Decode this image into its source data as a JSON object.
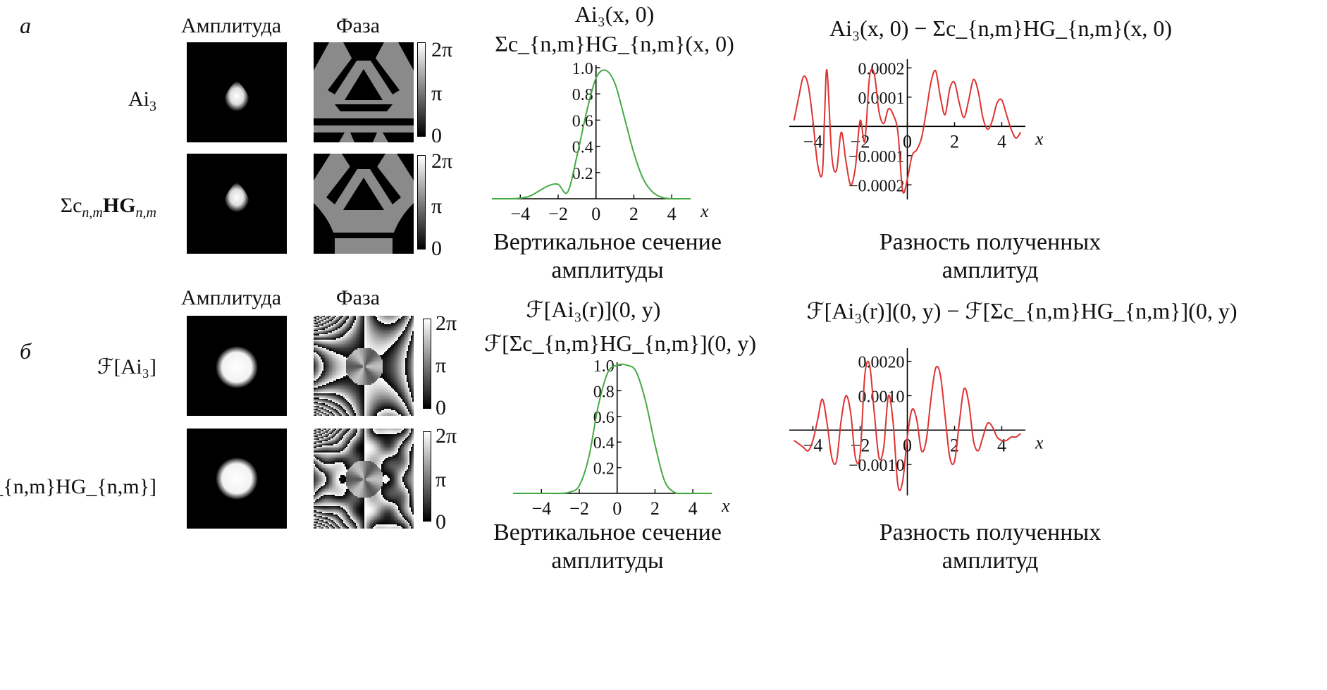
{
  "panels": {
    "a": {
      "letter": "а",
      "col_amplitude": "Амплитуда",
      "col_phase": "Фаза",
      "rows": [
        {
          "label_main": "Ai",
          "label_sub": "3"
        },
        {
          "label_main": "Σc",
          "label_sub": "n,m",
          "label_bold": "HG",
          "label_sub2": "n,m"
        }
      ],
      "colorbar": {
        "top": "2π",
        "mid": "π",
        "bottom": "0"
      },
      "section_title_1": "Ai₃(x, 0)",
      "section_title_2": "Σc_{n,m}HG_{n,m}(x, 0)",
      "section_caption_1": "Вертикальное сечение",
      "section_caption_2": "амплитуды",
      "diff_title": "Ai₃(x, 0) − Σc_{n,m}HG_{n,m}(x, 0)",
      "diff_caption_1": "Разность полученных",
      "diff_caption_2": "амплитуд"
    },
    "b": {
      "letter": "б",
      "col_amplitude": "Амплитуда",
      "col_phase": "Фаза",
      "rows": [
        {
          "label": "ℱ[Ai₃]"
        },
        {
          "label": "ℱ[Σc_{n,m}HG_{n,m}]"
        }
      ],
      "colorbar": {
        "top": "2π",
        "mid": "π",
        "bottom": "0"
      },
      "section_title_1": "ℱ[Ai₃(r)](0, y)",
      "section_title_2": "ℱ[Σc_{n,m}HG_{n,m}](0, y)",
      "section_caption_1": "Вертикальное сечение",
      "section_caption_2": "амплитуды",
      "diff_title": "ℱ[Ai₃(r)](0, y) − ℱ[Σc_{n,m}HG_{n,m}](0, y)",
      "diff_caption_1": "Разность полученных",
      "diff_caption_2": "амплитуд"
    }
  },
  "chart_data": [
    {
      "type": "line",
      "name_ref": "a-section",
      "xlabel": "x",
      "xlim": [
        -5.5,
        5
      ],
      "ylim": [
        0,
        1.0
      ],
      "x_ticks": [
        -4,
        -2,
        0,
        2,
        4
      ],
      "y_ticks": [
        0.2,
        0.4,
        0.6,
        0.8,
        1.0
      ],
      "x": [
        -5.5,
        -5,
        -4.5,
        -4,
        -3.5,
        -3,
        -2.5,
        -2,
        -1.5,
        -1,
        -0.5,
        0,
        0.5,
        1,
        1.5,
        2,
        2.5,
        3,
        3.5,
        4,
        4.5,
        5
      ],
      "series": [
        {
          "values": [
            0,
            0,
            0,
            0.005,
            0.02,
            0.06,
            0.1,
            0.11,
            0.05,
            0.33,
            0.66,
            0.92,
            0.98,
            0.88,
            0.62,
            0.35,
            0.15,
            0.05,
            0.01,
            0,
            0,
            0
          ]
        }
      ],
      "color": "#44aa44"
    },
    {
      "type": "line",
      "name_ref": "a-diff",
      "xlabel": "x",
      "xlim": [
        -5,
        5
      ],
      "ylim": [
        -0.00025,
        0.00022
      ],
      "x_ticks": [
        -4,
        -2,
        0,
        2,
        4
      ],
      "y_ticks": [
        -0.0002,
        -0.0001,
        0.0001,
        0.0002
      ],
      "y_tick_labels": [
        "−0.0002",
        "−0.0001",
        "0.0001",
        "0.0002"
      ],
      "x": [
        -4.8,
        -4.6,
        -4.4,
        -4.2,
        -4.0,
        -3.8,
        -3.6,
        -3.5,
        -3.4,
        -3.2,
        -3.0,
        -2.8,
        -2.6,
        -2.4,
        -2.2,
        -2.0,
        -1.8,
        -1.6,
        -1.4,
        -1.2,
        -1.0,
        -0.8,
        -0.6,
        -0.4,
        -0.2,
        0,
        0.2,
        0.4,
        0.6,
        0.8,
        1.0,
        1.2,
        1.4,
        1.6,
        1.8,
        2.0,
        2.2,
        2.4,
        2.6,
        2.8,
        3.0,
        3.2,
        3.4,
        3.6,
        3.8,
        4.0,
        4.2,
        4.4,
        4.6,
        4.8
      ],
      "series": [
        {
          "values": [
            2e-05,
            0.0001,
            0.00017,
            0.00014,
            2e-05,
            -0.00013,
            -0.00016,
            5e-05,
            0.00019,
            -0.0001,
            -0.00015,
            -2e-05,
            -0.00012,
            -0.0002,
            -0.00014,
            2e-05,
            -5e-05,
            0.00017,
            0.00018,
            5e-05,
            1e-05,
            6e-05,
            4e-05,
            -2e-05,
            -0.00022,
            -0.00018,
            -0.0001,
            -8e-05,
            -4e-05,
            5e-05,
            0.00015,
            0.00019,
            0.0001,
            4e-05,
            0.00013,
            0.00015,
            8e-05,
            3e-05,
            9e-05,
            0.00016,
            0.00012,
            3e-05,
            -1e-05,
            2e-05,
            8e-05,
            9e-05,
            4e-05,
            -1e-05,
            -4e-05,
            -2e-05
          ]
        }
      ],
      "color": "#dd3333"
    },
    {
      "type": "line",
      "name_ref": "b-section",
      "xlabel": "x",
      "xlim": [
        -5.5,
        5
      ],
      "ylim": [
        0,
        1.0
      ],
      "x_ticks": [
        -4,
        -2,
        0,
        2,
        4
      ],
      "x_tick_labels": [
        "−4",
        "−2",
        "0",
        "2",
        "4"
      ],
      "y_ticks": [
        0.2,
        0.4,
        0.6,
        0.8,
        1.0
      ],
      "x": [
        -5.5,
        -5,
        -4.5,
        -4,
        -3.5,
        -3,
        -2.5,
        -2,
        -1.5,
        -1,
        -0.5,
        0,
        0.5,
        1,
        1.5,
        2,
        2.5,
        3,
        3.5,
        4,
        4.5,
        5
      ],
      "series": [
        {
          "values": [
            0,
            0,
            0,
            0,
            0,
            0,
            0.01,
            0.06,
            0.28,
            0.68,
            0.94,
            1.0,
            1.0,
            0.95,
            0.72,
            0.38,
            0.1,
            0.01,
            0,
            0,
            0,
            0
          ]
        }
      ],
      "color": "#44aa44"
    },
    {
      "type": "line",
      "name_ref": "b-diff",
      "xlabel": "x",
      "xlim": [
        -5,
        5
      ],
      "ylim": [
        -0.0019,
        0.0023
      ],
      "x_ticks": [
        -4,
        -2,
        0,
        2,
        4
      ],
      "y_ticks": [
        -0.001,
        0.001,
        0.002
      ],
      "y_tick_labels": [
        "−0.0010",
        "0.0010",
        "0.0020"
      ],
      "x": [
        -4.8,
        -4.6,
        -4.4,
        -4.2,
        -4.0,
        -3.8,
        -3.6,
        -3.4,
        -3.2,
        -3.0,
        -2.8,
        -2.6,
        -2.4,
        -2.2,
        -2.0,
        -1.8,
        -1.6,
        -1.4,
        -1.2,
        -1.0,
        -0.8,
        -0.6,
        -0.4,
        -0.2,
        0,
        0.2,
        0.4,
        0.6,
        0.8,
        1.0,
        1.2,
        1.4,
        1.6,
        1.8,
        2.0,
        2.2,
        2.4,
        2.6,
        2.8,
        3.0,
        3.2,
        3.4,
        3.6,
        3.8,
        4.0,
        4.2,
        4.4,
        4.6,
        4.8
      ],
      "series": [
        {
          "values": [
            -0.0003,
            -0.0004,
            -0.0005,
            -0.0006,
            -0.0003,
            0.0003,
            0.0009,
            0.0002,
            -0.0008,
            -0.0009,
            0.0003,
            0.001,
            0.0005,
            -0.0008,
            -0.0007,
            0.0016,
            0.0019,
            0.0005,
            -0.0008,
            -0.0005,
            0.001,
            0.0002,
            -0.0016,
            -0.0015,
            -0.0002,
            0.0006,
            0.0003,
            -0.0006,
            -0.0003,
            0.0009,
            0.0018,
            0.0016,
            0.0004,
            -0.0008,
            -0.0009,
            0.0002,
            0.0012,
            0.0008,
            -0.0003,
            -0.0006,
            -0.0002,
            0.0002,
            0.0001,
            -0.0002,
            -0.0003,
            -0.0003,
            -0.0002,
            -0.0002,
            -0.0001
          ]
        }
      ],
      "color": "#dd3333"
    }
  ]
}
